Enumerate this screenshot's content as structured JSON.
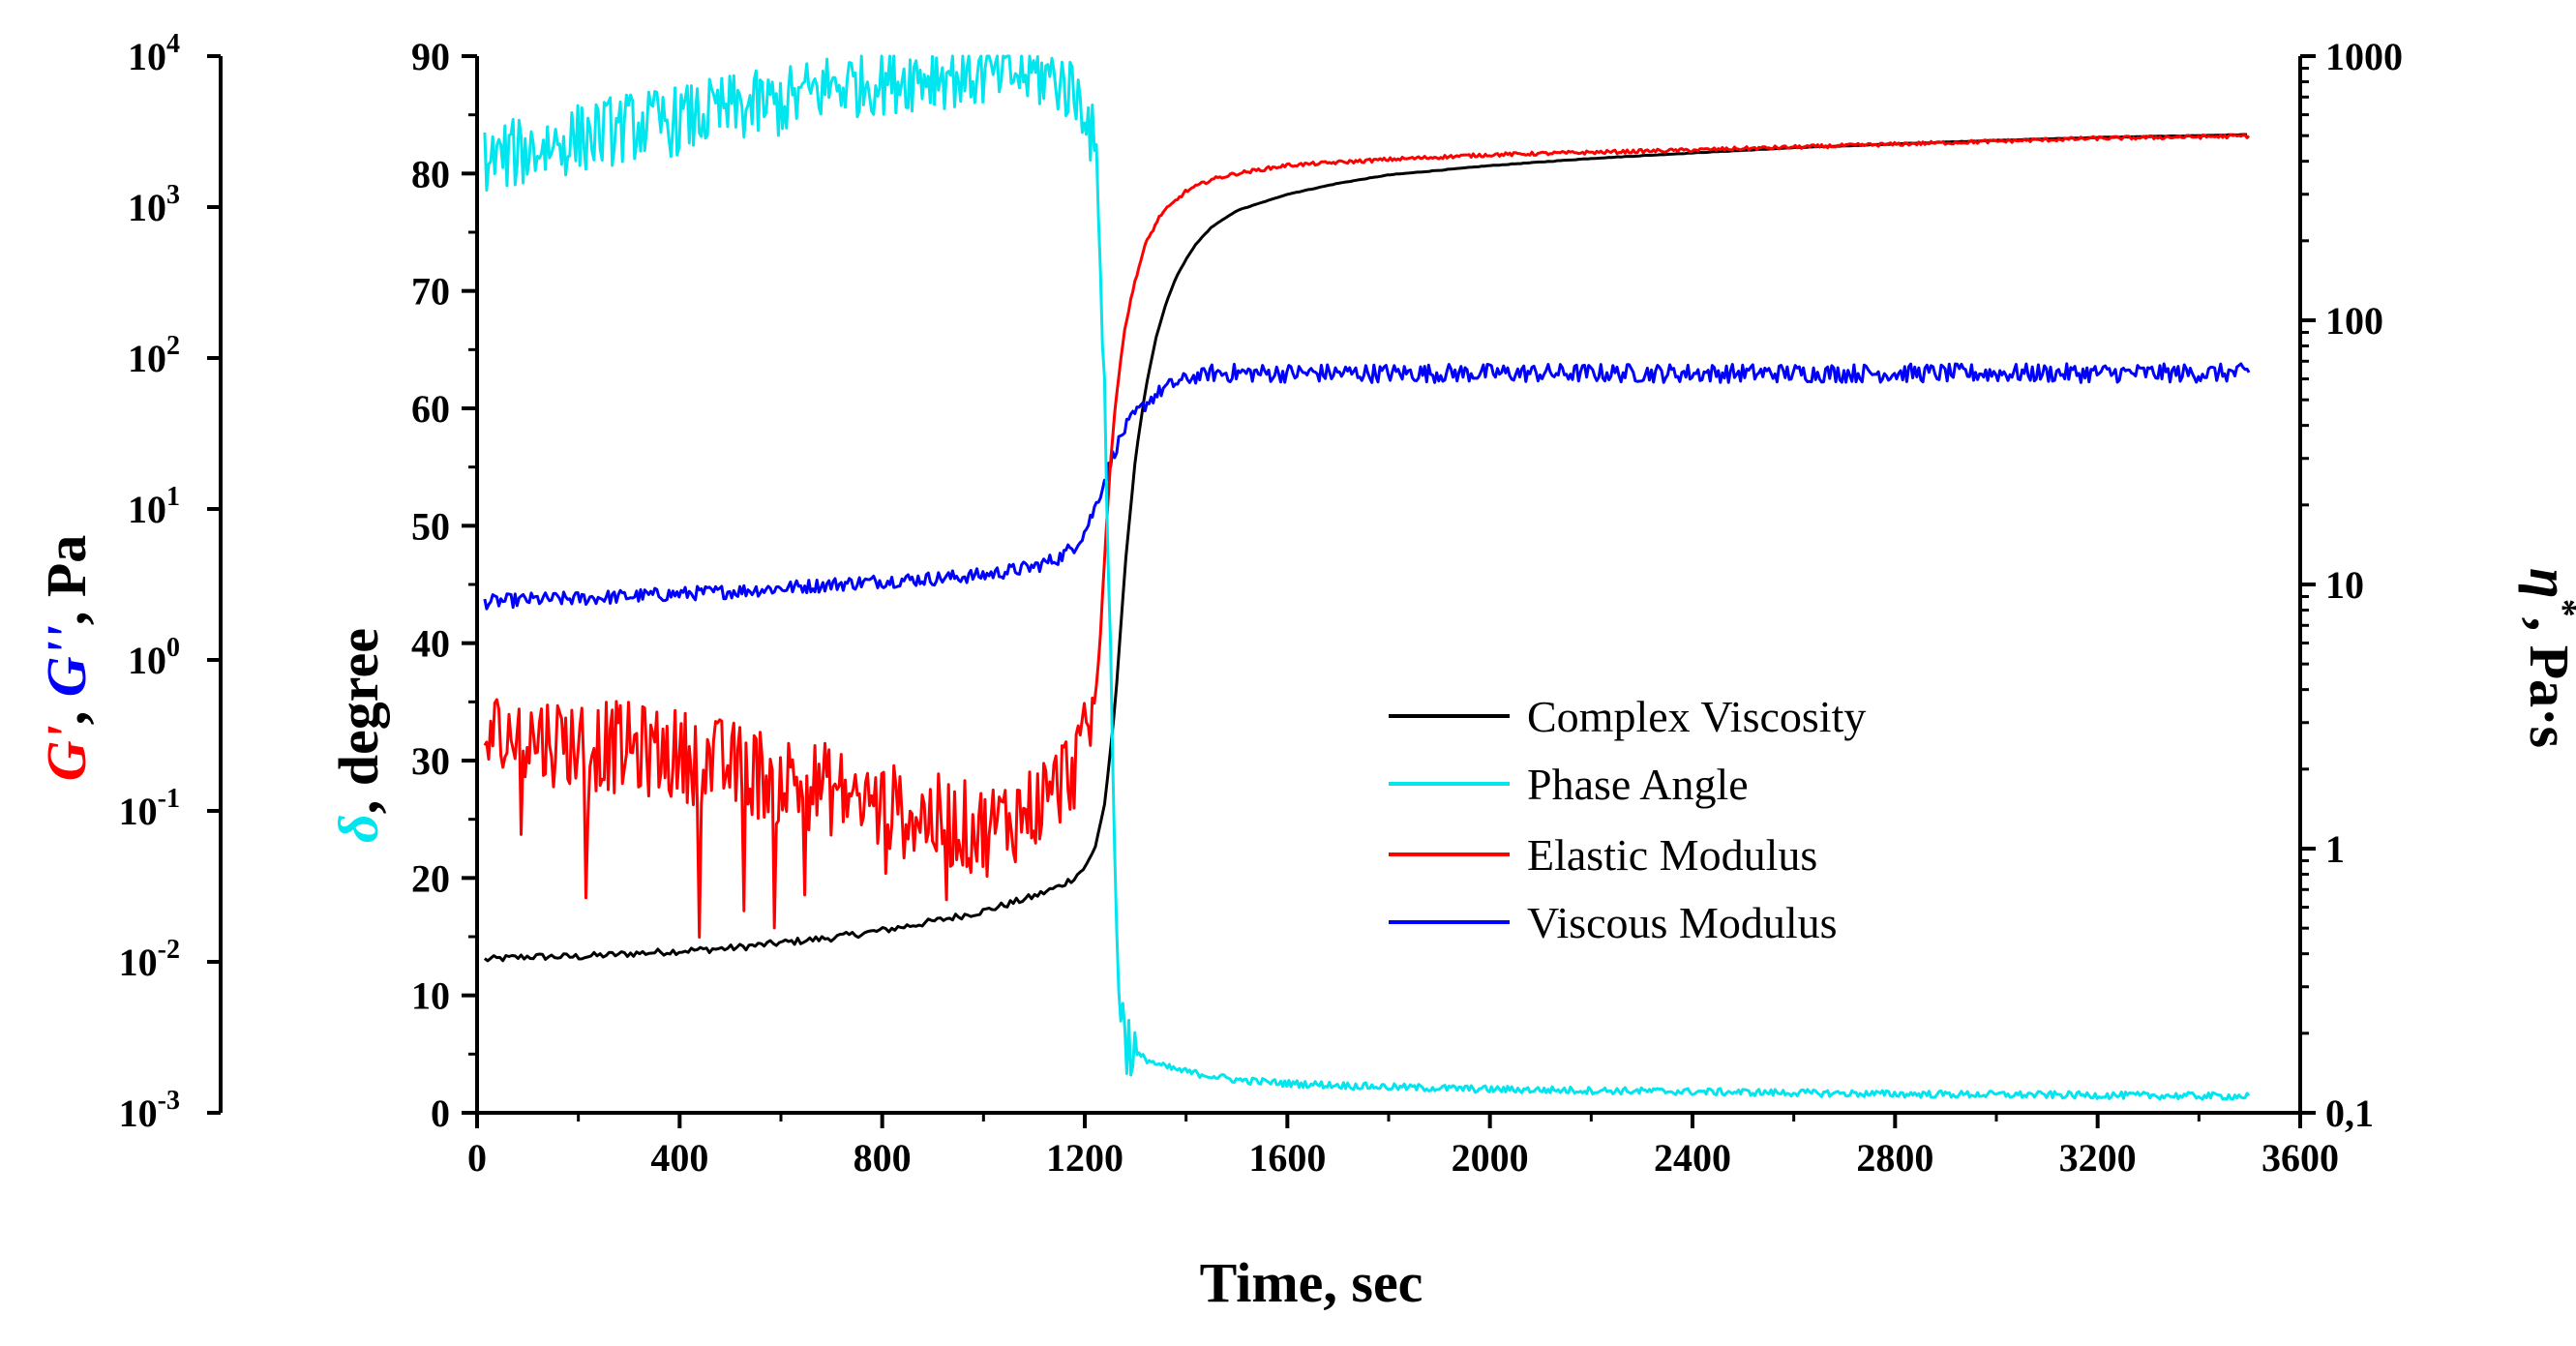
{
  "chart_data": {
    "type": "line",
    "title": "",
    "xlabel": "Time, sec",
    "xlim": [
      0,
      3600
    ],
    "xticks": [
      "0",
      "400",
      "800",
      "1200",
      "1600",
      "2000",
      "2400",
      "2800",
      "3200",
      "3600"
    ],
    "axes": {
      "delta": {
        "label_symbol": "δ",
        "label_rest": ", degree",
        "color": "#00e5ee",
        "ylim": [
          0,
          90
        ],
        "ticks": [
          "0",
          "10",
          "20",
          "30",
          "40",
          "50",
          "60",
          "70",
          "80",
          "90"
        ]
      },
      "modulus": {
        "label_parts": [
          {
            "text": "G'",
            "color": "#ff0000",
            "italic": true
          },
          {
            "text": ", ",
            "color": "#000000",
            "italic": false
          },
          {
            "text": "G''",
            "color": "#0000ff",
            "italic": true
          },
          {
            "text": ", Pa",
            "color": "#000000",
            "italic": false
          }
        ],
        "scale": "log",
        "ylim_exp": [
          -3,
          4
        ],
        "tick_base": "10",
        "tick_exponents": [
          "-3",
          "-2",
          "-1",
          "0",
          "1",
          "2",
          "3",
          "4"
        ]
      },
      "viscosity": {
        "label_symbol": "η",
        "label_sup": "*",
        "label_rest": ", Pa·s",
        "scale": "log",
        "ylim": [
          0.1,
          1000
        ],
        "ticks": [
          "0,1",
          "1",
          "10",
          "100",
          "1000"
        ]
      }
    },
    "series": [
      {
        "name": "Complex Viscosity",
        "color": "#000000",
        "axis": "viscosity",
        "x": [
          15,
          100,
          200,
          300,
          400,
          500,
          600,
          700,
          800,
          900,
          1000,
          1100,
          1150,
          1180,
          1200,
          1220,
          1240,
          1260,
          1280,
          1300,
          1320,
          1340,
          1360,
          1380,
          1400,
          1420,
          1450,
          1500,
          1600,
          1700,
          1800,
          2000,
          2200,
          2400,
          2600,
          2800,
          3000,
          3200,
          3400,
          3500
        ],
        "values": [
          0.38,
          0.39,
          0.39,
          0.4,
          0.41,
          0.42,
          0.44,
          0.46,
          0.49,
          0.53,
          0.58,
          0.66,
          0.72,
          0.78,
          0.85,
          1.0,
          1.5,
          3.5,
          12,
          30,
          55,
          85,
          115,
          145,
          170,
          195,
          225,
          260,
          300,
          330,
          355,
          385,
          410,
          430,
          450,
          465,
          480,
          492,
          500,
          505
        ]
      },
      {
        "name": "Phase Angle",
        "color": "#00e5ee",
        "axis": "delta",
        "x": [
          15,
          100,
          200,
          300,
          400,
          500,
          600,
          700,
          800,
          900,
          1000,
          1100,
          1150,
          1200,
          1220,
          1230,
          1240,
          1250,
          1260,
          1270,
          1280,
          1300,
          1350,
          1400,
          1500,
          1600,
          1800,
          2000,
          2400,
          2800,
          3200,
          3500
        ],
        "values": [
          81,
          82,
          83,
          84,
          84.5,
          85.5,
          86,
          87.5,
          88,
          88.5,
          88.5,
          88.5,
          88,
          86,
          82,
          75,
          60,
          40,
          20,
          9,
          6.5,
          5,
          4,
          3.5,
          2.8,
          2.5,
          2.2,
          2.0,
          1.8,
          1.6,
          1.5,
          1.4
        ],
        "noise": 3
      },
      {
        "name": "Elastic Modulus",
        "color": "#ff0000",
        "axis": "delta",
        "x": [
          15,
          100,
          200,
          300,
          400,
          500,
          600,
          700,
          800,
          900,
          1000,
          1100,
          1150,
          1200,
          1220,
          1230,
          1240,
          1250,
          1260,
          1270,
          1280,
          1300,
          1320,
          1350,
          1400,
          1450,
          1500,
          1600,
          1800,
          2000,
          2400,
          2800,
          3200,
          3500
        ],
        "values": [
          32,
          32,
          31.5,
          31,
          30.5,
          29.5,
          28.5,
          27.5,
          26,
          25,
          24,
          26,
          28,
          31,
          35,
          40,
          48,
          55,
          60,
          64,
          67,
          71,
          74,
          76.5,
          78.5,
          79.5,
          80,
          80.7,
          81.2,
          81.6,
          82,
          82.5,
          83,
          83.2
        ],
        "noise": 4
      },
      {
        "name": "Viscous Modulus",
        "color": "#0000ff",
        "axis": "delta",
        "x": [
          15,
          100,
          200,
          300,
          400,
          500,
          600,
          700,
          800,
          900,
          1000,
          1100,
          1150,
          1180,
          1200,
          1220,
          1240,
          1260,
          1280,
          1300,
          1330,
          1360,
          1400,
          1450,
          1500,
          1600,
          1800,
          2000,
          2400,
          2800,
          3200,
          3500
        ],
        "values": [
          43.5,
          43.7,
          43.8,
          44,
          44.2,
          44.4,
          44.7,
          45,
          45.3,
          45.5,
          45.8,
          46.5,
          47.3,
          48.3,
          49.5,
          51.5,
          54,
          56.5,
          58.3,
          59.5,
          60.8,
          61.8,
          62.5,
          63,
          63,
          63,
          63,
          63,
          63,
          63,
          63,
          63
        ],
        "noise": 0.6
      }
    ],
    "legend": {
      "placement": "lower-center",
      "entries": [
        "Complex Viscosity",
        "Phase Angle",
        "Elastic Modulus",
        "Viscous Modulus"
      ]
    }
  }
}
